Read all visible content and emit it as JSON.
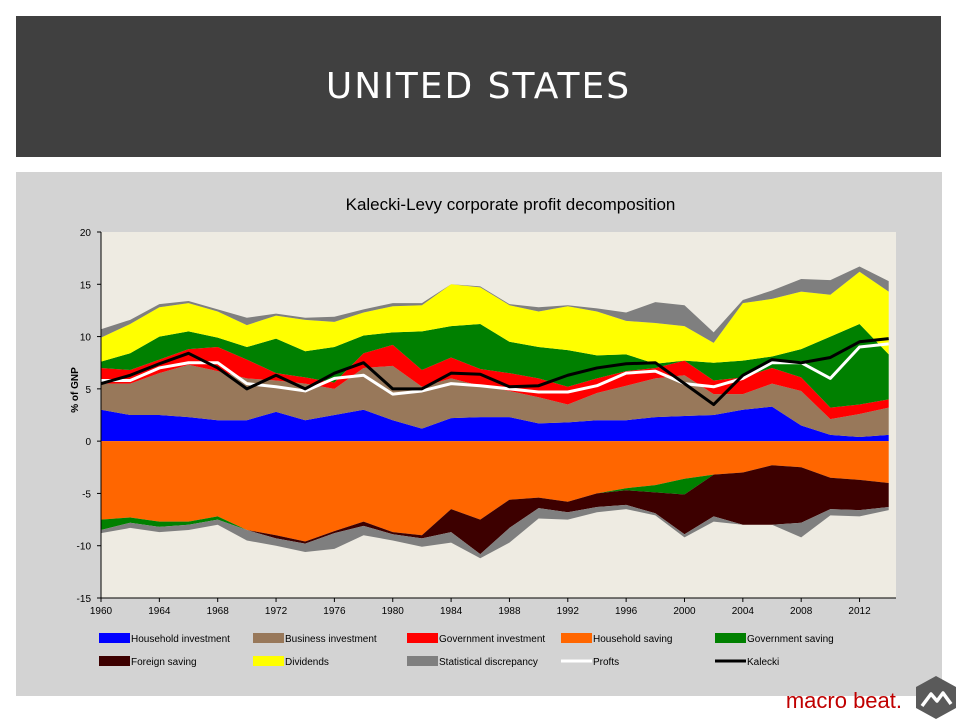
{
  "slide": {
    "title": "UNITED STATES",
    "brand_text": "macro beat.",
    "colors": {
      "header_bg": "#404040",
      "panel_bg": "#d3d3d3",
      "plot_bg": "#eeebe2",
      "brand": "#c00000"
    },
    "logo_icon": "mountain-hexagon-logo"
  },
  "chart_data": {
    "type": "area",
    "title": "Kalecki-Levy corporate profit decomposition",
    "ylabel": "% of GNP",
    "xlabel": "",
    "xlim": [
      1960,
      2014.5
    ],
    "ylim": [
      -15,
      20
    ],
    "y_ticks": [
      20,
      15,
      10,
      5,
      0,
      -5,
      -10,
      -15
    ],
    "x_ticks": [
      1960,
      1964,
      1968,
      1972,
      1976,
      1980,
      1984,
      1988,
      1992,
      1996,
      2000,
      2004,
      2008,
      2012
    ],
    "grid": false,
    "legend_position": "bottom",
    "x": [
      1960,
      1962,
      1964,
      1966,
      1968,
      1970,
      1972,
      1974,
      1976,
      1978,
      1980,
      1982,
      1984,
      1986,
      1988,
      1990,
      1992,
      1994,
      1996,
      1998,
      2000,
      2002,
      2004,
      2006,
      2008,
      2010,
      2012,
      2014
    ],
    "stacked_positive": [
      {
        "name": "Household investment",
        "color": "#0000ff",
        "values": [
          3.0,
          2.5,
          2.5,
          2.3,
          2.0,
          2.0,
          2.8,
          2.0,
          2.5,
          3.0,
          2.0,
          1.2,
          2.2,
          2.3,
          2.3,
          1.7,
          1.8,
          2.0,
          2.0,
          2.3,
          2.4,
          2.5,
          3.0,
          3.3,
          1.5,
          0.6,
          0.4,
          0.6
        ]
      },
      {
        "name": "Business investment",
        "color": "#98785a",
        "values": [
          2.5,
          3.0,
          4.0,
          5.0,
          4.7,
          4.0,
          3.0,
          3.5,
          2.5,
          4.0,
          5.2,
          4.0,
          3.8,
          3.0,
          2.5,
          2.5,
          1.7,
          2.6,
          3.3,
          3.7,
          3.9,
          2.0,
          1.5,
          2.2,
          3.3,
          1.5,
          2.2,
          2.6
        ]
      },
      {
        "name": "Government investment",
        "color": "#ff0000",
        "values": [
          1.5,
          1.3,
          1.3,
          1.5,
          2.3,
          1.8,
          0.7,
          0.6,
          0.6,
          1.4,
          2.0,
          1.6,
          2.0,
          1.6,
          1.7,
          1.8,
          1.7,
          1.4,
          1.4,
          1.0,
          1.4,
          1.3,
          1.6,
          1.5,
          1.3,
          1.1,
          0.9,
          0.8
        ]
      },
      {
        "name": "Government saving",
        "color": "#008000",
        "values": [
          0.6,
          1.6,
          2.2,
          1.7,
          0.9,
          1.2,
          3.3,
          2.5,
          3.4,
          1.7,
          1.2,
          3.7,
          3.0,
          4.3,
          3.0,
          3.0,
          3.5,
          2.2,
          1.6,
          0.4,
          0.0,
          1.7,
          1.6,
          1.1,
          2.7,
          6.8,
          7.7,
          4.3
        ]
      },
      {
        "name": "Dividends",
        "color": "#ffff00",
        "values": [
          2.3,
          2.8,
          2.8,
          2.7,
          2.5,
          2.1,
          2.2,
          3.0,
          2.4,
          2.2,
          2.5,
          2.5,
          4.0,
          3.5,
          3.5,
          3.4,
          4.2,
          4.2,
          3.2,
          3.9,
          3.3,
          1.9,
          5.5,
          5.5,
          5.5,
          4.0,
          5.0,
          6.0
        ]
      },
      {
        "name": "Statistical discrepancy",
        "color": "#7f7f7f",
        "values": [
          0.8,
          0.4,
          0.3,
          0.2,
          0.2,
          0.7,
          0.2,
          0.2,
          0.5,
          0.3,
          0.3,
          0.2,
          0.0,
          0.1,
          0.1,
          0.4,
          0.1,
          0.3,
          0.8,
          2.0,
          2.0,
          1.0,
          0.3,
          0.8,
          1.2,
          1.4,
          0.5,
          1.0
        ]
      }
    ],
    "stacked_negative": [
      {
        "name": "Household saving",
        "color": "#ff6600",
        "values": [
          -7.5,
          -7.3,
          -7.7,
          -7.7,
          -7.2,
          -8.5,
          -9.0,
          -9.6,
          -8.6,
          -7.7,
          -8.7,
          -9.0,
          -6.5,
          -7.5,
          -5.6,
          -5.4,
          -5.8,
          -5.0,
          -4.5,
          -4.2,
          -3.6,
          -3.2,
          -3.0,
          -2.3,
          -2.5,
          -3.5,
          -3.7,
          -4.0
        ]
      },
      {
        "name": "Government saving",
        "color": "#008000",
        "values": [
          -1.0,
          -0.5,
          -0.5,
          -0.3,
          -0.3,
          0,
          0,
          0,
          0,
          0,
          0,
          0,
          0,
          0,
          0,
          0,
          0,
          0,
          -0.2,
          -0.7,
          -1.5,
          0,
          0,
          0,
          0,
          0,
          0,
          0
        ]
      },
      {
        "name": "Foreign saving",
        "color": "#3d0000",
        "values": [
          0,
          0,
          0,
          0,
          0,
          0,
          -0.3,
          -0.2,
          -0.2,
          -0.4,
          -0.2,
          -0.3,
          -2.2,
          -3.3,
          -2.7,
          -1.0,
          -1.0,
          -1.3,
          -1.4,
          -2.0,
          -3.8,
          -4.0,
          -5.0,
          -5.7,
          -5.3,
          -3.0,
          -2.9,
          -2.3
        ]
      },
      {
        "name": "Statistical discrepancy",
        "color": "#7f7f7f",
        "values": [
          -0.3,
          -0.5,
          -0.5,
          -0.5,
          -0.5,
          -1.0,
          -0.7,
          -0.8,
          -1.5,
          -0.9,
          -0.6,
          -0.8,
          -1.0,
          -0.4,
          -1.4,
          -1.0,
          -0.7,
          -0.5,
          -0.4,
          -0.2,
          -0.3,
          -0.5,
          0,
          0,
          -1.4,
          -0.6,
          -0.6,
          -0.3
        ]
      }
    ],
    "lines": [
      {
        "name": "Profts",
        "color": "#ffffff",
        "values": [
          5.8,
          5.8,
          7.0,
          7.5,
          7.5,
          5.5,
          5.2,
          4.8,
          6.0,
          6.3,
          4.5,
          4.8,
          5.5,
          5.3,
          5.0,
          4.7,
          4.7,
          5.3,
          6.5,
          6.7,
          5.5,
          5.2,
          6.0,
          7.5,
          7.5,
          6.0,
          9.0,
          9.3
        ]
      },
      {
        "name": "Kalecki",
        "color": "#000000",
        "values": [
          5.5,
          6.3,
          7.4,
          8.4,
          7.0,
          5.0,
          6.3,
          5.0,
          6.5,
          7.5,
          5.0,
          5.0,
          6.5,
          6.4,
          5.2,
          5.3,
          6.3,
          7.0,
          7.4,
          7.5,
          5.5,
          3.5,
          6.3,
          7.8,
          7.5,
          8.0,
          9.5,
          9.8
        ]
      }
    ],
    "legend": [
      {
        "label": "Household investment",
        "color": "#0000ff",
        "kind": "box"
      },
      {
        "label": "Business investment",
        "color": "#98785a",
        "kind": "box"
      },
      {
        "label": "Government investment",
        "color": "#ff0000",
        "kind": "box"
      },
      {
        "label": "Household saving",
        "color": "#ff6600",
        "kind": "box"
      },
      {
        "label": "Government saving",
        "color": "#008000",
        "kind": "box"
      },
      {
        "label": "Foreign saving",
        "color": "#3d0000",
        "kind": "box"
      },
      {
        "label": "Dividends",
        "color": "#ffff00",
        "kind": "box"
      },
      {
        "label": "Statistical discrepancy",
        "color": "#7f7f7f",
        "kind": "box"
      },
      {
        "label": "Profts",
        "color": "#ffffff",
        "kind": "line"
      },
      {
        "label": "Kalecki",
        "color": "#000000",
        "kind": "line"
      }
    ]
  }
}
